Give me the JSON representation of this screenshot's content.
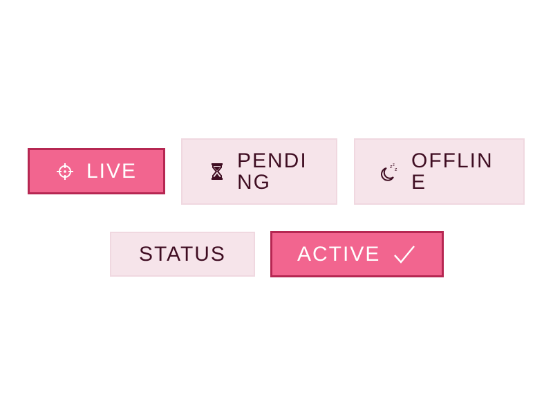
{
  "colors": {
    "active_fill": "#f2658f",
    "active_border": "#b62752",
    "active_text": "#ffffff",
    "muted_fill": "#f6e4ea",
    "muted_border": "#f0d8e0",
    "muted_text": "#3f0d22"
  },
  "badges": {
    "live": {
      "label": "LIVE",
      "icon": "crosshair-icon"
    },
    "pending": {
      "label": "PENDING",
      "icon": "hourglass-icon"
    },
    "offline": {
      "label": "OFFLINE",
      "icon": "sleeping-moon-icon"
    },
    "status": {
      "label": "STATUS"
    },
    "active": {
      "label": "ACTIVE",
      "icon": "checkmark-icon"
    }
  }
}
